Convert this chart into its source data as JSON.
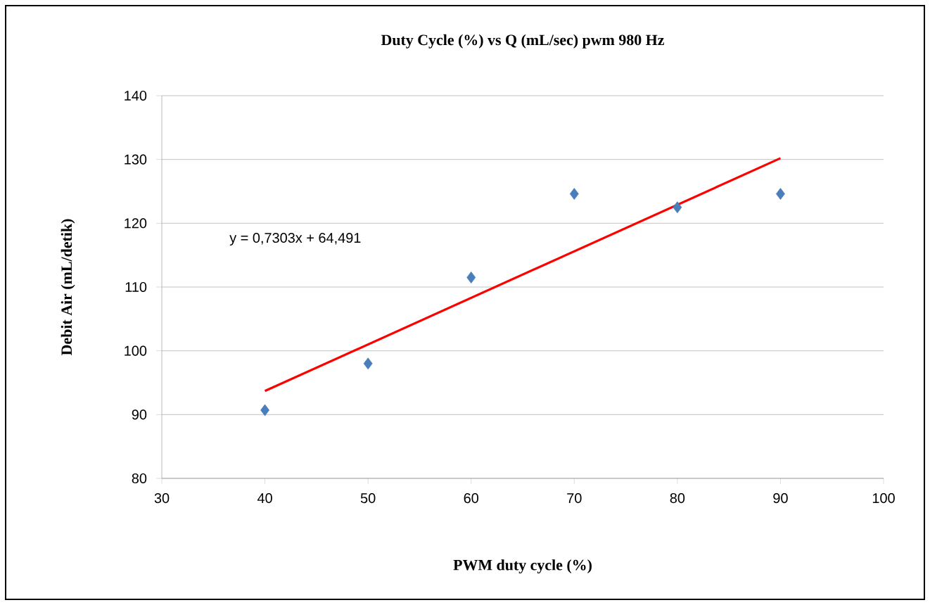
{
  "chart_data": {
    "type": "scatter",
    "title": "Duty Cycle (%) vs Q (mL/sec)  pwm 980 Hz",
    "xlabel": "PWM duty  cycle (%)",
    "ylabel": "Debit  Air  (mL/detik)",
    "x": [
      40,
      50,
      60,
      70,
      80,
      90
    ],
    "series": [
      {
        "marker": "diamond",
        "color": "#4a7ebb",
        "values": [
          90.7,
          98,
          111.5,
          124.6,
          122.5,
          124.6
        ]
      },
      {
        "type": "line",
        "color": "#ff0000",
        "x": [
          40,
          90
        ],
        "values": [
          93.7,
          130.2
        ]
      }
    ],
    "grid": "y",
    "xlim": [
      30,
      100
    ],
    "xticks": [
      30,
      40,
      50,
      60,
      70,
      80,
      90,
      100
    ],
    "ylim": [
      80,
      140
    ],
    "yticks": [
      80,
      90,
      100,
      110,
      120,
      130,
      140
    ],
    "annotations": [
      "y = 0,7303x + 64,491"
    ]
  }
}
